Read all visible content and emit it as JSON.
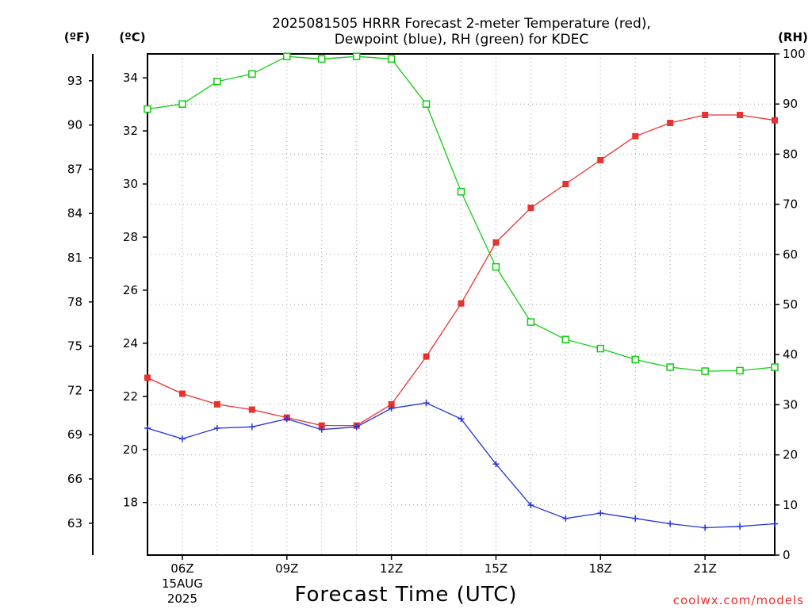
{
  "chart_data": {
    "type": "line",
    "title_line1": "2025081505 HRRR Forecast 2-meter Temperature (red),",
    "title_line2": "Dewpoint (blue), RH (green) for KDEC",
    "xlabel": "Forecast Time (UTC)",
    "unit_labels": {
      "left_f": "(ºF)",
      "left_c": "(ºC)",
      "right_rh": "(RH)"
    },
    "credit": "coolwx.com/models",
    "hours": [
      5,
      6,
      7,
      8,
      9,
      10,
      11,
      12,
      13,
      14,
      15,
      16,
      17,
      18,
      19,
      20,
      21,
      22,
      23
    ],
    "x_ticks": [
      {
        "hour": 6,
        "label": "06Z",
        "sub1": "15AUG",
        "sub2": "2025"
      },
      {
        "hour": 9,
        "label": "09Z",
        "sub1": "",
        "sub2": ""
      },
      {
        "hour": 12,
        "label": "12Z",
        "sub1": "",
        "sub2": ""
      },
      {
        "hour": 15,
        "label": "15Z",
        "sub1": "",
        "sub2": ""
      },
      {
        "hour": 18,
        "label": "18Z",
        "sub1": "",
        "sub2": ""
      },
      {
        "hour": 21,
        "label": "21Z",
        "sub1": "",
        "sub2": ""
      }
    ],
    "c_axis": {
      "min": 16.02,
      "max": 34.9,
      "ticks": [
        18,
        20,
        22,
        24,
        26,
        28,
        30,
        32,
        34
      ]
    },
    "f_ticks": [
      63,
      66,
      69,
      72,
      75,
      78,
      81,
      84,
      87,
      90,
      93
    ],
    "rh_axis": {
      "min": 0,
      "max": 100,
      "ticks": [
        0,
        10,
        20,
        30,
        40,
        50,
        60,
        70,
        80,
        90,
        100
      ]
    },
    "series": [
      {
        "name": "Temperature",
        "unit": "C",
        "color": "#e8322f",
        "marker": "filled-square",
        "values": [
          22.7,
          22.1,
          21.7,
          21.5,
          21.2,
          20.9,
          20.9,
          21.7,
          23.5,
          25.5,
          27.8,
          29.1,
          30.0,
          30.9,
          31.8,
          32.3,
          32.6,
          32.6,
          32.4
        ]
      },
      {
        "name": "Dewpoint",
        "unit": "C",
        "color": "#2233dd",
        "marker": "plus",
        "values": [
          20.8,
          20.4,
          20.8,
          20.85,
          21.15,
          20.75,
          20.85,
          21.55,
          21.75,
          21.15,
          19.45,
          17.9,
          17.4,
          17.6,
          17.4,
          17.2,
          17.05,
          17.1,
          17.2
        ]
      },
      {
        "name": "RH",
        "unit": "%",
        "color": "#11cc11",
        "marker": "open-square",
        "values": [
          89,
          90,
          94.5,
          96,
          99.5,
          99,
          99.5,
          99,
          90,
          72.5,
          57.5,
          46.5,
          43,
          41.2,
          39,
          37.5,
          36.7,
          36.8,
          37.5
        ]
      }
    ]
  }
}
